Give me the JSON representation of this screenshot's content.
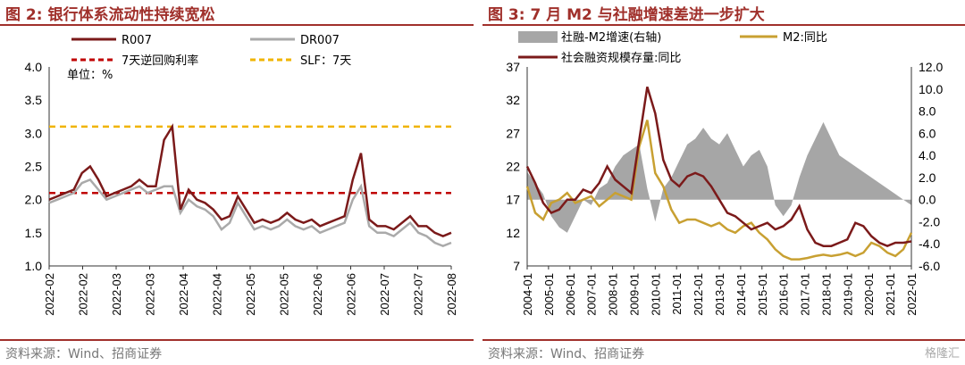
{
  "left": {
    "title": "图 2:  银行体系流动性持续宽松",
    "source": "资料来源：Wind、招商证券",
    "unit_label": "单位：%",
    "chart_data": {
      "type": "line",
      "legend": [
        "R007",
        "DR007",
        "7天逆回购利率",
        "SLF：7天"
      ],
      "ylim": [
        1.0,
        4.0
      ],
      "yticks": [
        "1.0",
        "1.5",
        "2.0",
        "2.5",
        "3.0",
        "3.5",
        "4.0"
      ],
      "xticks": [
        "2022-02",
        "2022-02",
        "2022-03",
        "2022-03",
        "2022-04",
        "2022-04",
        "2022-05",
        "2022-05",
        "2022-06",
        "2022-06",
        "2022-07",
        "2022-07",
        "2022-08"
      ],
      "series": [
        {
          "name": "R007",
          "color": "#7b1a1a",
          "values": [
            2.0,
            2.05,
            2.1,
            2.15,
            2.4,
            2.5,
            2.3,
            2.05,
            2.1,
            2.15,
            2.2,
            2.3,
            2.2,
            2.2,
            2.9,
            3.1,
            1.85,
            2.15,
            2.0,
            1.95,
            1.85,
            1.7,
            1.75,
            2.05,
            1.85,
            1.65,
            1.7,
            1.65,
            1.7,
            1.8,
            1.7,
            1.65,
            1.7,
            1.6,
            1.65,
            1.7,
            1.75,
            2.3,
            2.7,
            1.7,
            1.6,
            1.6,
            1.55,
            1.65,
            1.75,
            1.6,
            1.6,
            1.5,
            1.45,
            1.5
          ]
        },
        {
          "name": "DR007",
          "color": "#aaaaaa",
          "values": [
            1.95,
            2.0,
            2.05,
            2.1,
            2.25,
            2.3,
            2.15,
            2.0,
            2.05,
            2.1,
            2.15,
            2.2,
            2.1,
            2.15,
            2.2,
            2.2,
            1.8,
            2.0,
            1.9,
            1.85,
            1.75,
            1.55,
            1.65,
            1.95,
            1.75,
            1.55,
            1.6,
            1.55,
            1.6,
            1.7,
            1.6,
            1.55,
            1.6,
            1.5,
            1.55,
            1.6,
            1.65,
            2.0,
            2.2,
            1.6,
            1.5,
            1.5,
            1.45,
            1.55,
            1.65,
            1.5,
            1.45,
            1.35,
            1.3,
            1.35
          ]
        },
        {
          "name": "7天逆回购利率",
          "color": "#c00000",
          "dashed": true,
          "values": [
            2.1,
            2.1
          ]
        },
        {
          "name": "SLF：7天",
          "color": "#f0b400",
          "dashed": true,
          "values": [
            3.1,
            3.1
          ]
        }
      ]
    }
  },
  "right": {
    "title": "图 3:   7 月 M2 与社融增速差进一步扩大",
    "source": "资料来源：Wind、招商证券",
    "watermark": "格隆汇",
    "chart_data": {
      "type": "line",
      "legend": [
        "社融-M2增速(右轴)",
        "M2:同比",
        "社会融资规模存量:同比"
      ],
      "ylim": [
        7,
        37
      ],
      "yticks": [
        "7",
        "12",
        "17",
        "22",
        "27",
        "32",
        "37"
      ],
      "y2lim": [
        -6,
        12
      ],
      "y2ticks": [
        "-6.0",
        "-4.0",
        "-2.0",
        "0.0",
        "2.0",
        "4.0",
        "6.0",
        "8.0",
        "10.0",
        "12.0"
      ],
      "xticks": [
        "2004-01",
        "2005-01",
        "2006-01",
        "2007-01",
        "2008-01",
        "2009-01",
        "2010-01",
        "2011-01",
        "2012-01",
        "2013-01",
        "2014-01",
        "2015-01",
        "2016-01",
        "2017-01",
        "2018-01",
        "2019-01",
        "2020-01",
        "2021-01",
        "2022-01"
      ],
      "series": [
        {
          "name": "社融-M2增速(右轴)",
          "color": "#a6a6a6",
          "area": true,
          "values": [
            2.5,
            1.5,
            0.5,
            -1.5,
            -2.5,
            -3.0,
            -1.5,
            0.0,
            -0.5,
            1.0,
            1.5,
            3.0,
            4.0,
            4.5,
            5.0,
            1.0,
            -2.0,
            1.0,
            2.0,
            3.5,
            5.0,
            5.5,
            6.5,
            5.5,
            5.0,
            6.0,
            4.5,
            3.0,
            4.0,
            4.5,
            3.0,
            -0.5,
            -1.5,
            -0.5,
            2.0,
            4.0,
            5.5,
            7.0,
            5.5,
            4.0,
            3.5,
            3.0,
            2.5,
            2.0,
            1.5,
            1.0,
            0.5,
            0.0,
            -0.5
          ]
        },
        {
          "name": "M2:同比",
          "color": "#c8a032",
          "values": [
            19.0,
            15.0,
            14.0,
            16.5,
            17.0,
            18.0,
            16.5,
            17.0,
            17.5,
            16.0,
            17.0,
            18.0,
            17.5,
            17.0,
            25.0,
            29.0,
            21.0,
            19.0,
            15.5,
            13.5,
            14.0,
            14.0,
            13.5,
            13.0,
            13.5,
            12.5,
            12.0,
            13.0,
            13.5,
            12.0,
            11.0,
            9.5,
            8.5,
            8.0,
            8.0,
            8.2,
            8.5,
            8.7,
            8.5,
            8.7,
            9.0,
            8.5,
            9.0,
            10.5,
            10.0,
            9.0,
            8.5,
            9.5,
            12.0
          ]
        },
        {
          "name": "社会融资规模存量:同比",
          "color": "#7b1a1a",
          "values": [
            22.0,
            19.5,
            16.5,
            15.0,
            15.5,
            17.0,
            17.0,
            18.5,
            18.0,
            19.5,
            22.0,
            20.0,
            19.0,
            18.0,
            26.0,
            34.0,
            30.0,
            23.0,
            20.0,
            19.0,
            20.5,
            21.0,
            20.5,
            19.0,
            17.0,
            15.0,
            14.5,
            13.5,
            12.5,
            13.0,
            13.5,
            12.5,
            13.0,
            14.0,
            16.0,
            12.5,
            10.5,
            10.0,
            10.0,
            10.5,
            11.0,
            13.5,
            13.0,
            11.5,
            10.5,
            10.0,
            10.5,
            10.5,
            10.7
          ]
        }
      ]
    }
  }
}
